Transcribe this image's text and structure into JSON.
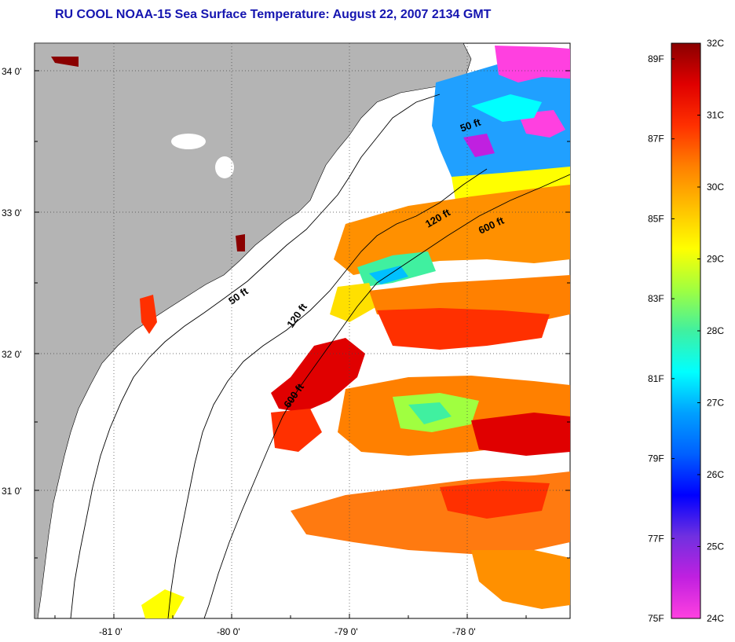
{
  "title": "RU COOL  NOAA-15  Sea Surface Temperature:  August 22, 2007 2134 GMT",
  "axes": {
    "lat_labels": [
      "34 0'",
      "33 0'",
      "32 0'",
      "31 0'"
    ],
    "lon_labels": [
      "-81 0'",
      "-80 0'",
      "-79 0'",
      "-78 0'"
    ],
    "grid": true
  },
  "contour_labels": [
    {
      "label": "50 ft"
    },
    {
      "label": "50 ft"
    },
    {
      "label": "120 ft"
    },
    {
      "label": "120 ft"
    },
    {
      "label": "600 ft"
    },
    {
      "label": "600 ft"
    }
  ],
  "colorbar": {
    "celsius_labels": [
      "32C",
      "31C",
      "30C",
      "29C",
      "28C",
      "27C",
      "26C",
      "25C",
      "24C"
    ],
    "fahrenheit_labels": [
      "89F",
      "87F",
      "85F",
      "83F",
      "81F",
      "79F",
      "77F",
      "75F"
    ],
    "colors": [
      "#ff40e0",
      "#c020e0",
      "#7030e0",
      "#0000ff",
      "#0060ff",
      "#00a0ff",
      "#00ffff",
      "#40f0a0",
      "#a0ff40",
      "#ffff00",
      "#ffc000",
      "#ff8000",
      "#ff3000",
      "#e00000",
      "#8a0000"
    ]
  },
  "colors": {
    "land": "#b4b4b4",
    "title": "#1515b0",
    "warm": "#ff7a10",
    "hot": "#e01818",
    "cool": "#20a0ff",
    "cold": "#ff40e0"
  }
}
